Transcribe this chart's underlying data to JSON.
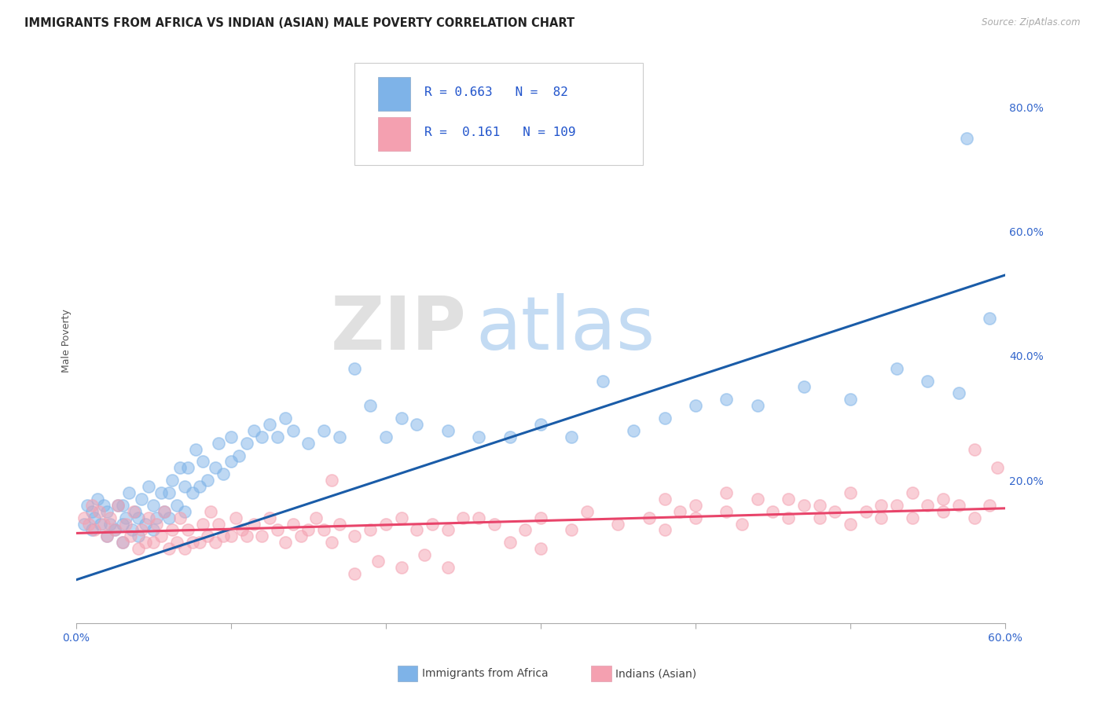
{
  "title": "IMMIGRANTS FROM AFRICA VS INDIAN (ASIAN) MALE POVERTY CORRELATION CHART",
  "source": "Source: ZipAtlas.com",
  "ylabel": "Male Poverty",
  "xlim": [
    0.0,
    0.6
  ],
  "ylim": [
    -0.03,
    0.88
  ],
  "yticks_right": [
    0.2,
    0.4,
    0.6,
    0.8
  ],
  "ytick_labels_right": [
    "20.0%",
    "40.0%",
    "60.0%",
    "80.0%"
  ],
  "blue_R": 0.663,
  "blue_N": 82,
  "pink_R": 0.161,
  "pink_N": 109,
  "blue_color": "#7EB3E8",
  "pink_color": "#F4A0B0",
  "blue_line_color": "#1A5CA8",
  "pink_line_color": "#E8446A",
  "legend_label_blue": "Immigrants from Africa",
  "legend_label_pink": "Indians (Asian)",
  "watermark_zip": "ZIP",
  "watermark_atlas": "atlas",
  "blue_line_x0": 0.0,
  "blue_line_y0": 0.04,
  "blue_line_x1": 0.6,
  "blue_line_y1": 0.53,
  "pink_line_x0": 0.0,
  "pink_line_y0": 0.115,
  "pink_line_x1": 0.6,
  "pink_line_y1": 0.155,
  "grid_color": "#CCCCCC",
  "background_color": "#FFFFFF",
  "blue_scatter_x": [
    0.005,
    0.007,
    0.01,
    0.01,
    0.012,
    0.014,
    0.016,
    0.018,
    0.02,
    0.02,
    0.022,
    0.025,
    0.027,
    0.03,
    0.03,
    0.03,
    0.032,
    0.034,
    0.036,
    0.038,
    0.04,
    0.04,
    0.042,
    0.045,
    0.047,
    0.05,
    0.05,
    0.052,
    0.055,
    0.057,
    0.06,
    0.06,
    0.062,
    0.065,
    0.067,
    0.07,
    0.07,
    0.072,
    0.075,
    0.077,
    0.08,
    0.082,
    0.085,
    0.09,
    0.092,
    0.095,
    0.1,
    0.1,
    0.105,
    0.11,
    0.115,
    0.12,
    0.125,
    0.13,
    0.135,
    0.14,
    0.15,
    0.16,
    0.17,
    0.18,
    0.19,
    0.2,
    0.21,
    0.22,
    0.24,
    0.26,
    0.28,
    0.3,
    0.32,
    0.34,
    0.36,
    0.38,
    0.4,
    0.42,
    0.44,
    0.47,
    0.5,
    0.53,
    0.55,
    0.57,
    0.59,
    0.575
  ],
  "blue_scatter_y": [
    0.13,
    0.16,
    0.12,
    0.15,
    0.14,
    0.17,
    0.13,
    0.16,
    0.11,
    0.15,
    0.13,
    0.12,
    0.16,
    0.1,
    0.13,
    0.16,
    0.14,
    0.18,
    0.12,
    0.15,
    0.11,
    0.14,
    0.17,
    0.13,
    0.19,
    0.12,
    0.16,
    0.14,
    0.18,
    0.15,
    0.14,
    0.18,
    0.2,
    0.16,
    0.22,
    0.15,
    0.19,
    0.22,
    0.18,
    0.25,
    0.19,
    0.23,
    0.2,
    0.22,
    0.26,
    0.21,
    0.23,
    0.27,
    0.24,
    0.26,
    0.28,
    0.27,
    0.29,
    0.27,
    0.3,
    0.28,
    0.26,
    0.28,
    0.27,
    0.38,
    0.32,
    0.27,
    0.3,
    0.29,
    0.28,
    0.27,
    0.27,
    0.29,
    0.27,
    0.36,
    0.28,
    0.3,
    0.32,
    0.33,
    0.32,
    0.35,
    0.33,
    0.38,
    0.36,
    0.34,
    0.46,
    0.75
  ],
  "pink_scatter_x": [
    0.005,
    0.008,
    0.01,
    0.012,
    0.015,
    0.018,
    0.02,
    0.022,
    0.025,
    0.027,
    0.03,
    0.032,
    0.035,
    0.037,
    0.04,
    0.042,
    0.045,
    0.047,
    0.05,
    0.052,
    0.055,
    0.057,
    0.06,
    0.062,
    0.065,
    0.067,
    0.07,
    0.072,
    0.075,
    0.08,
    0.082,
    0.085,
    0.087,
    0.09,
    0.092,
    0.095,
    0.1,
    0.103,
    0.107,
    0.11,
    0.115,
    0.12,
    0.125,
    0.13,
    0.135,
    0.14,
    0.145,
    0.15,
    0.155,
    0.16,
    0.165,
    0.17,
    0.18,
    0.19,
    0.2,
    0.21,
    0.22,
    0.23,
    0.24,
    0.25,
    0.27,
    0.29,
    0.3,
    0.32,
    0.33,
    0.35,
    0.37,
    0.38,
    0.39,
    0.4,
    0.42,
    0.43,
    0.45,
    0.46,
    0.47,
    0.48,
    0.49,
    0.5,
    0.51,
    0.52,
    0.53,
    0.54,
    0.55,
    0.56,
    0.57,
    0.58,
    0.59,
    0.595,
    0.165,
    0.3,
    0.38,
    0.4,
    0.42,
    0.44,
    0.46,
    0.48,
    0.5,
    0.52,
    0.54,
    0.56,
    0.58,
    0.18,
    0.195,
    0.21,
    0.225,
    0.24,
    0.26,
    0.28
  ],
  "pink_scatter_y": [
    0.14,
    0.13,
    0.16,
    0.12,
    0.15,
    0.13,
    0.11,
    0.14,
    0.12,
    0.16,
    0.1,
    0.13,
    0.11,
    0.15,
    0.09,
    0.12,
    0.1,
    0.14,
    0.1,
    0.13,
    0.11,
    0.15,
    0.09,
    0.12,
    0.1,
    0.14,
    0.09,
    0.12,
    0.1,
    0.1,
    0.13,
    0.11,
    0.15,
    0.1,
    0.13,
    0.11,
    0.11,
    0.14,
    0.12,
    0.11,
    0.13,
    0.11,
    0.14,
    0.12,
    0.1,
    0.13,
    0.11,
    0.12,
    0.14,
    0.12,
    0.1,
    0.13,
    0.11,
    0.12,
    0.13,
    0.14,
    0.12,
    0.13,
    0.12,
    0.14,
    0.13,
    0.12,
    0.14,
    0.12,
    0.15,
    0.13,
    0.14,
    0.12,
    0.15,
    0.14,
    0.15,
    0.13,
    0.15,
    0.14,
    0.16,
    0.14,
    0.15,
    0.13,
    0.15,
    0.14,
    0.16,
    0.14,
    0.16,
    0.15,
    0.16,
    0.14,
    0.16,
    0.22,
    0.2,
    0.09,
    0.17,
    0.16,
    0.18,
    0.17,
    0.17,
    0.16,
    0.18,
    0.16,
    0.18,
    0.17,
    0.25,
    0.05,
    0.07,
    0.06,
    0.08,
    0.06,
    0.14,
    0.1
  ]
}
